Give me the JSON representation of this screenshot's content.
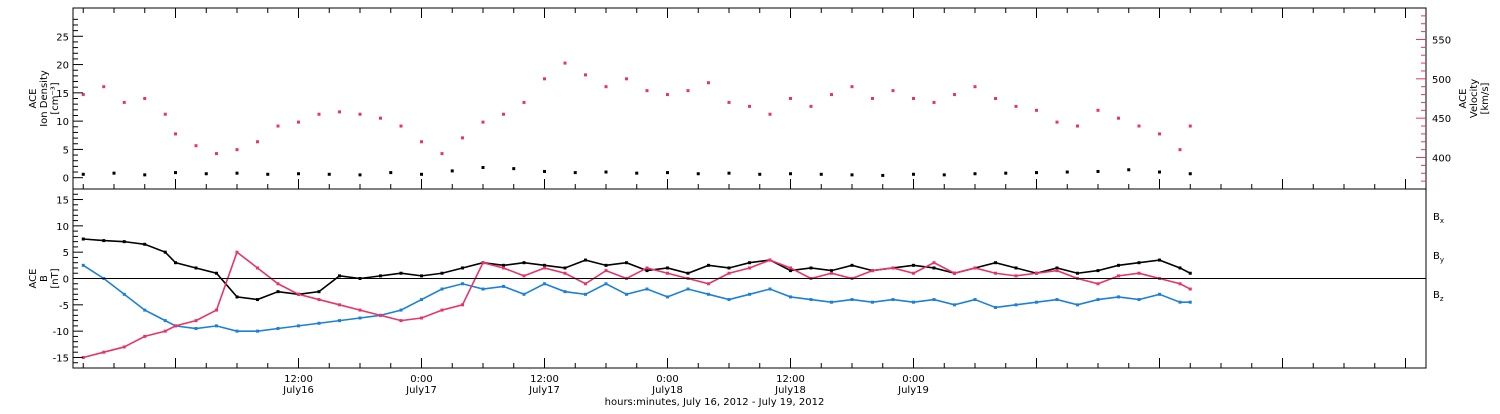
{
  "colors": {
    "black": "#000000",
    "pink": "#e8336b",
    "blue": "#1c80d8"
  },
  "chart_data": [
    {
      "type": "scatter",
      "panel": "top",
      "ylabel_lines": [
        "ACE",
        "Ion Density",
        "[cm⁻³]"
      ],
      "ylim": [
        -2,
        30
      ],
      "yticks": [
        0,
        5,
        10,
        15,
        20,
        25
      ],
      "y2label_lines": [
        "ACE",
        "Velocity",
        "[km/s]"
      ],
      "y2lim": [
        360,
        590
      ],
      "y2ticks": [
        400,
        450,
        500,
        550
      ],
      "series": [
        {
          "color": "#000000",
          "axis": "left",
          "x": [
            -9,
            -6,
            -3,
            0,
            3,
            6,
            9,
            12,
            15,
            18,
            21,
            24,
            27,
            30,
            33,
            36,
            39,
            42,
            45,
            48,
            51,
            54,
            57,
            60,
            63,
            66,
            69,
            72,
            75,
            78,
            81,
            84,
            87,
            90,
            93,
            96,
            99
          ],
          "y": [
            0.6,
            0.8,
            0.5,
            0.9,
            0.7,
            0.8,
            0.6,
            0.7,
            0.6,
            0.5,
            0.9,
            0.6,
            1.2,
            1.8,
            1.6,
            1.1,
            0.9,
            1.0,
            0.8,
            0.9,
            0.7,
            0.8,
            0.6,
            0.7,
            0.6,
            0.5,
            0.4,
            0.6,
            0.5,
            0.7,
            0.8,
            0.9,
            1.0,
            1.1,
            1.4,
            1.0,
            0.7
          ]
        },
        {
          "color": "#e8336b",
          "axis": "right",
          "x": [
            -9,
            -7,
            -5,
            -3,
            -1,
            0,
            2,
            4,
            6,
            8,
            10,
            12,
            14,
            16,
            18,
            20,
            22,
            24,
            26,
            28,
            30,
            32,
            34,
            36,
            38,
            40,
            42,
            44,
            46,
            48,
            50,
            52,
            54,
            56,
            58,
            60,
            62,
            64,
            66,
            68,
            70,
            72,
            74,
            76,
            78,
            80,
            82,
            84,
            86,
            88,
            90,
            92,
            94,
            96,
            98,
            99
          ],
          "y": [
            480,
            490,
            470,
            475,
            455,
            430,
            415,
            405,
            410,
            420,
            440,
            445,
            455,
            458,
            455,
            450,
            440,
            420,
            405,
            425,
            445,
            455,
            470,
            500,
            520,
            505,
            490,
            500,
            485,
            480,
            485,
            495,
            470,
            465,
            455,
            475,
            465,
            480,
            490,
            475,
            485,
            475,
            470,
            480,
            490,
            475,
            465,
            460,
            445,
            440,
            460,
            450,
            440,
            430,
            410,
            440
          ]
        }
      ]
    },
    {
      "type": "scatter",
      "panel": "bottom",
      "ylabel_lines": [
        "ACE",
        "B",
        "[nT]"
      ],
      "ylim": [
        -17,
        17
      ],
      "yticks": [
        -15,
        -10,
        -5,
        0,
        5,
        10,
        15
      ],
      "legend": [
        "Bx",
        "By",
        "Bz"
      ],
      "series": [
        {
          "name": "Bx",
          "color": "#000000",
          "x": [
            -9,
            -7,
            -5,
            -3,
            -1,
            0,
            2,
            4,
            6,
            8,
            10,
            12,
            14,
            16,
            18,
            20,
            22,
            24,
            26,
            28,
            30,
            32,
            34,
            36,
            38,
            40,
            42,
            44,
            46,
            48,
            50,
            52,
            54,
            56,
            58,
            60,
            62,
            64,
            66,
            68,
            70,
            72,
            74,
            76,
            78,
            80,
            82,
            84,
            86,
            88,
            90,
            92,
            94,
            96,
            98,
            99
          ],
          "y": [
            7.5,
            7.2,
            7.0,
            6.5,
            5.0,
            3.0,
            2.0,
            1.0,
            -3.5,
            -4.0,
            -2.5,
            -3.0,
            -2.5,
            0.5,
            0.0,
            0.5,
            1.0,
            0.5,
            1.0,
            2.0,
            3.0,
            2.5,
            3.0,
            2.5,
            2.0,
            3.5,
            2.5,
            3.0,
            1.5,
            2.0,
            1.0,
            2.5,
            2.0,
            3.0,
            3.5,
            1.5,
            2.0,
            1.5,
            2.5,
            1.5,
            2.0,
            2.5,
            2.0,
            1.0,
            2.0,
            3.0,
            2.0,
            1.0,
            2.0,
            1.0,
            1.5,
            2.5,
            3.0,
            3.5,
            2.0,
            1.0
          ]
        },
        {
          "name": "By",
          "color": "#1c80d8",
          "x": [
            -9,
            -7,
            -5,
            -3,
            -1,
            0,
            2,
            4,
            6,
            8,
            10,
            12,
            14,
            16,
            18,
            20,
            22,
            24,
            26,
            28,
            30,
            32,
            34,
            36,
            38,
            40,
            42,
            44,
            46,
            48,
            50,
            52,
            54,
            56,
            58,
            60,
            62,
            64,
            66,
            68,
            70,
            72,
            74,
            76,
            78,
            80,
            82,
            84,
            86,
            88,
            90,
            92,
            94,
            96,
            98,
            99
          ],
          "y": [
            2.5,
            0.0,
            -3.0,
            -6.0,
            -8.0,
            -9.0,
            -9.5,
            -9.0,
            -10.0,
            -10.0,
            -9.5,
            -9.0,
            -8.5,
            -8.0,
            -7.5,
            -7.0,
            -6.0,
            -4.0,
            -2.0,
            -1.0,
            -2.0,
            -1.5,
            -3.0,
            -1.0,
            -2.5,
            -3.0,
            -1.0,
            -3.0,
            -2.0,
            -3.5,
            -2.0,
            -3.0,
            -4.0,
            -3.0,
            -2.0,
            -3.5,
            -4.0,
            -4.5,
            -4.0,
            -4.5,
            -4.0,
            -4.5,
            -4.0,
            -5.0,
            -4.0,
            -5.5,
            -5.0,
            -4.5,
            -4.0,
            -5.0,
            -4.0,
            -3.5,
            -4.0,
            -3.0,
            -4.5,
            -4.5
          ]
        },
        {
          "name": "Bz",
          "color": "#e8336b",
          "x": [
            -9,
            -7,
            -5,
            -3,
            -1,
            0,
            2,
            4,
            6,
            8,
            10,
            12,
            14,
            16,
            18,
            20,
            22,
            24,
            26,
            28,
            30,
            32,
            34,
            36,
            38,
            40,
            42,
            44,
            46,
            48,
            50,
            52,
            54,
            56,
            58,
            60,
            62,
            64,
            66,
            68,
            70,
            72,
            74,
            76,
            78,
            80,
            82,
            84,
            86,
            88,
            90,
            92,
            94,
            96,
            98,
            99
          ],
          "y": [
            -15.0,
            -14.0,
            -13.0,
            -11.0,
            -10.0,
            -9.0,
            -8.0,
            -6.0,
            5.0,
            2.0,
            -1.0,
            -3.0,
            -4.0,
            -5.0,
            -6.0,
            -7.0,
            -8.0,
            -7.5,
            -6.0,
            -5.0,
            3.0,
            2.0,
            0.5,
            2.0,
            1.0,
            -1.0,
            1.5,
            0.0,
            2.0,
            1.0,
            0.0,
            -1.0,
            1.0,
            2.0,
            3.5,
            2.0,
            0.0,
            1.0,
            0.0,
            1.5,
            2.0,
            1.0,
            3.0,
            1.0,
            2.0,
            1.0,
            0.5,
            1.0,
            1.5,
            0.0,
            -1.0,
            0.5,
            1.0,
            0.0,
            -1.0,
            -2.0
          ]
        }
      ]
    }
  ],
  "x_axis": {
    "xlim": [
      -10,
      122
    ],
    "major_ticks": [
      12,
      24,
      36,
      48,
      60,
      72,
      84,
      96
    ],
    "tick_labels": [
      {
        "time": "12:00",
        "date": "July16"
      },
      {
        "time": "0:00",
        "date": "July17"
      },
      {
        "time": "12:00",
        "date": "July17"
      },
      {
        "time": "0:00",
        "date": "July18"
      },
      {
        "time": "12:00",
        "date": "July18"
      },
      {
        "time": "0:00",
        "date": "July19"
      }
    ],
    "label_positions": [
      12,
      24,
      36,
      48,
      60,
      72
    ],
    "title": "hours:minutes, July 16, 2012 - July 19, 2012"
  }
}
